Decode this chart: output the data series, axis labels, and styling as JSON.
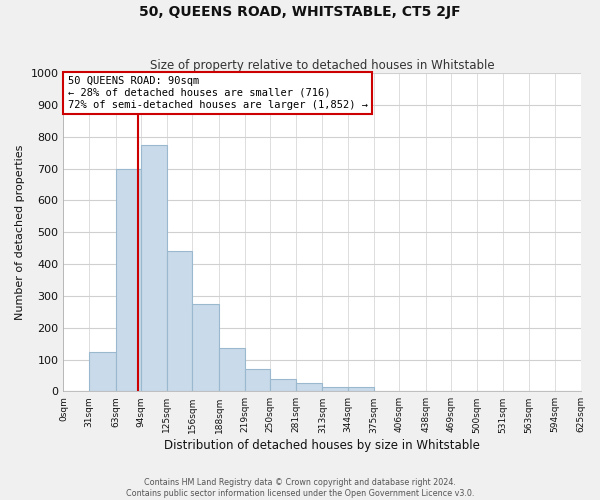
{
  "title": "50, QUEENS ROAD, WHITSTABLE, CT5 2JF",
  "subtitle": "Size of property relative to detached houses in Whitstable",
  "xlabel": "Distribution of detached houses by size in Whitstable",
  "ylabel": "Number of detached properties",
  "bar_color": "#c9daea",
  "bar_edge_color": "#9ab8ce",
  "bins": [
    "0sqm",
    "31sqm",
    "63sqm",
    "94sqm",
    "125sqm",
    "156sqm",
    "188sqm",
    "219sqm",
    "250sqm",
    "281sqm",
    "313sqm",
    "344sqm",
    "375sqm",
    "406sqm",
    "438sqm",
    "469sqm",
    "500sqm",
    "531sqm",
    "563sqm",
    "594sqm",
    "625sqm"
  ],
  "bin_edges": [
    0,
    31,
    63,
    94,
    125,
    156,
    188,
    219,
    250,
    281,
    313,
    344,
    375,
    406,
    438,
    469,
    500,
    531,
    563,
    594,
    625
  ],
  "values": [
    0,
    125,
    700,
    775,
    440,
    275,
    135,
    70,
    40,
    25,
    15,
    15,
    0,
    0,
    0,
    0,
    0,
    0,
    0,
    0
  ],
  "ylim": [
    0,
    1000
  ],
  "yticks": [
    0,
    100,
    200,
    300,
    400,
    500,
    600,
    700,
    800,
    900,
    1000
  ],
  "property_line_x": 90,
  "property_line_color": "#cc0000",
  "annotation_line1": "50 QUEENS ROAD: 90sqm",
  "annotation_line2": "← 28% of detached houses are smaller (716)",
  "annotation_line3": "72% of semi-detached houses are larger (1,852) →",
  "annotation_box_color": "#ffffff",
  "annotation_box_edge": "#cc0000",
  "footer1": "Contains HM Land Registry data © Crown copyright and database right 2024.",
  "footer2": "Contains public sector information licensed under the Open Government Licence v3.0.",
  "background_color": "#f0f0f0",
  "plot_background_color": "#ffffff",
  "grid_color": "#d0d0d0"
}
